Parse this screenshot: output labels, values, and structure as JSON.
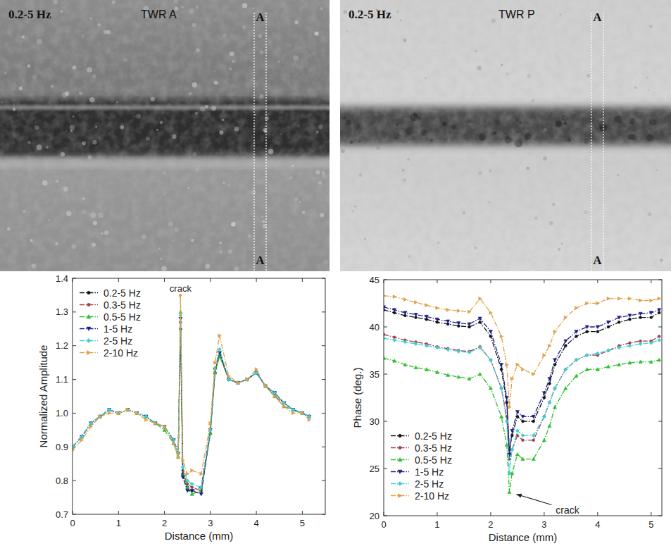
{
  "images": [
    {
      "frequency": "0.2-5 Hz",
      "title": "TWR A",
      "section_labels": [
        "A",
        "A"
      ]
    },
    {
      "frequency": "0.2-5 Hz",
      "title": "TWR P",
      "section_labels": [
        "A",
        "A"
      ]
    }
  ],
  "chart_data": [
    {
      "type": "line",
      "x_label": "Distance (mm)",
      "y_label": "Normalized Amplitude",
      "x": [
        0,
        0.2,
        0.4,
        0.6,
        0.8,
        1.0,
        1.2,
        1.4,
        1.6,
        1.8,
        2.0,
        2.2,
        2.3,
        2.35,
        2.4,
        2.5,
        2.6,
        2.8,
        3.0,
        3.1,
        3.2,
        3.4,
        3.6,
        3.8,
        4.0,
        4.2,
        4.4,
        4.6,
        4.8,
        5.0,
        5.15
      ],
      "series": [
        {
          "name": "0.2-5 Hz",
          "color": "#111111",
          "marker": "circle",
          "values": [
            0.9,
            0.93,
            0.97,
            0.99,
            1.01,
            1.0,
            1.01,
            1.0,
            0.99,
            0.97,
            0.96,
            0.92,
            0.88,
            1.25,
            0.82,
            0.78,
            0.77,
            0.78,
            0.95,
            1.12,
            1.18,
            1.1,
            1.09,
            1.1,
            1.12,
            1.08,
            1.06,
            1.03,
            1.01,
            1.0,
            0.99
          ]
        },
        {
          "name": "0.3-5 Hz",
          "color": "#a0404a",
          "marker": "circle",
          "values": [
            0.9,
            0.93,
            0.97,
            0.99,
            1.01,
            1.0,
            1.01,
            1.0,
            0.99,
            0.97,
            0.96,
            0.92,
            0.88,
            1.27,
            0.83,
            0.79,
            0.78,
            0.77,
            0.94,
            1.12,
            1.17,
            1.1,
            1.09,
            1.1,
            1.12,
            1.08,
            1.05,
            1.03,
            1.01,
            1.0,
            0.99
          ]
        },
        {
          "name": "0.5-5 Hz",
          "color": "#2fbf2f",
          "marker": "triangle-up",
          "values": [
            0.9,
            0.93,
            0.97,
            0.99,
            1.01,
            1.0,
            1.01,
            1.0,
            0.99,
            0.97,
            0.95,
            0.91,
            0.87,
            1.3,
            0.82,
            0.78,
            0.76,
            0.77,
            0.94,
            1.12,
            1.17,
            1.1,
            1.09,
            1.1,
            1.12,
            1.08,
            1.05,
            1.02,
            1.01,
            1.0,
            0.99
          ]
        },
        {
          "name": "1-5 Hz",
          "color": "#1c1c8c",
          "marker": "triangle-down",
          "values": [
            0.9,
            0.93,
            0.97,
            0.99,
            1.01,
            1.0,
            1.01,
            1.0,
            0.99,
            0.97,
            0.96,
            0.92,
            0.88,
            1.28,
            0.81,
            0.77,
            0.77,
            0.76,
            0.95,
            1.13,
            1.18,
            1.1,
            1.09,
            1.1,
            1.12,
            1.08,
            1.06,
            1.03,
            1.01,
            1.0,
            0.99
          ]
        },
        {
          "name": "2-5 Hz",
          "color": "#3ecfd6",
          "marker": "diamond",
          "values": [
            0.9,
            0.93,
            0.97,
            0.99,
            1.01,
            1.0,
            1.01,
            1.0,
            0.99,
            0.97,
            0.96,
            0.92,
            0.88,
            1.29,
            0.84,
            0.8,
            0.79,
            0.78,
            0.95,
            1.13,
            1.19,
            1.1,
            1.09,
            1.1,
            1.12,
            1.08,
            1.06,
            1.03,
            1.01,
            1.0,
            0.99
          ]
        },
        {
          "name": "2-10 Hz",
          "color": "#e0a048",
          "marker": "triangle-right",
          "values": [
            0.89,
            0.92,
            0.96,
            0.99,
            1.0,
            1.0,
            1.01,
            1.0,
            0.98,
            0.97,
            0.96,
            0.91,
            0.87,
            1.35,
            0.86,
            0.82,
            0.83,
            0.82,
            0.97,
            1.15,
            1.23,
            1.11,
            1.09,
            1.1,
            1.13,
            1.08,
            1.05,
            1.02,
            1.0,
            1.0,
            0.98
          ]
        }
      ],
      "xlim": [
        0,
        5.5
      ],
      "xticks": [
        0,
        1,
        2,
        3,
        4,
        5
      ],
      "ylim": [
        0.7,
        1.4
      ],
      "yticks": [
        0.7,
        0.8,
        0.9,
        {
          "value": 1,
          "label": "1.0"
        },
        1.1,
        1.2,
        1.3,
        1.4
      ],
      "legend": "upper left",
      "line_style": "dashdot",
      "grid": false,
      "annotations": [
        {
          "text": "crack",
          "x": 2.35,
          "y": 1.36
        }
      ]
    },
    {
      "type": "line",
      "x_label": "Distance (mm)",
      "y_label": "Phase (deg.)",
      "x": [
        0,
        0.2,
        0.4,
        0.6,
        0.8,
        1.0,
        1.2,
        1.4,
        1.6,
        1.8,
        2.0,
        2.2,
        2.3,
        2.35,
        2.4,
        2.5,
        2.6,
        2.8,
        3.0,
        3.1,
        3.2,
        3.4,
        3.6,
        3.8,
        4.0,
        4.2,
        4.4,
        4.6,
        4.8,
        5.0,
        5.15
      ],
      "series": [
        {
          "name": "0.2-5 Hz",
          "color": "#111111",
          "marker": "circle",
          "values": [
            41.8,
            41.5,
            41.2,
            41.0,
            40.8,
            40.5,
            40.3,
            40.1,
            40.0,
            40.5,
            39.0,
            35.5,
            32.0,
            27.0,
            28.5,
            30.5,
            30.0,
            30.0,
            32.5,
            34.0,
            36.0,
            38.0,
            39.0,
            39.5,
            39.5,
            40.0,
            40.5,
            40.8,
            41.0,
            41.0,
            41.5
          ]
        },
        {
          "name": "0.3-5 Hz",
          "color": "#a0404a",
          "marker": "circle",
          "values": [
            39.2,
            38.9,
            38.6,
            38.4,
            38.2,
            37.9,
            37.7,
            37.5,
            37.4,
            37.9,
            36.5,
            33.5,
            30.5,
            26.0,
            27.0,
            28.5,
            28.0,
            28.0,
            30.5,
            32.0,
            33.5,
            35.5,
            36.5,
            37.0,
            37.0,
            37.5,
            38.0,
            38.3,
            38.5,
            38.5,
            39.0
          ]
        },
        {
          "name": "0.5-5 Hz",
          "color": "#2fbf2f",
          "marker": "triangle-up",
          "values": [
            36.7,
            36.4,
            36.0,
            35.7,
            35.5,
            35.2,
            34.9,
            34.7,
            34.5,
            35.0,
            33.5,
            30.5,
            27.5,
            22.5,
            24.5,
            26.5,
            26.0,
            26.0,
            28.0,
            29.5,
            31.5,
            33.5,
            34.8,
            35.5,
            35.5,
            35.8,
            36.0,
            36.2,
            36.3,
            36.3,
            36.5
          ]
        },
        {
          "name": "1-5 Hz",
          "color": "#1c1c8c",
          "marker": "triangle-down",
          "values": [
            42.1,
            41.8,
            41.5,
            41.3,
            41.1,
            40.8,
            40.6,
            40.4,
            40.3,
            40.9,
            39.5,
            36.0,
            32.5,
            26.5,
            29.0,
            31.0,
            30.5,
            30.5,
            33.0,
            34.5,
            36.5,
            38.5,
            39.5,
            40.0,
            40.0,
            40.5,
            41.0,
            41.2,
            41.4,
            41.5,
            41.8
          ]
        },
        {
          "name": "2-5 Hz",
          "color": "#3ecfd6",
          "marker": "diamond",
          "values": [
            38.8,
            38.6,
            38.4,
            38.2,
            38.0,
            37.8,
            37.6,
            37.4,
            37.3,
            37.8,
            36.5,
            33.5,
            30.0,
            24.5,
            27.0,
            29.0,
            28.5,
            28.5,
            30.5,
            32.0,
            33.5,
            35.5,
            36.5,
            37.0,
            37.2,
            37.5,
            37.8,
            38.0,
            38.2,
            38.3,
            38.6
          ]
        },
        {
          "name": "2-10 Hz",
          "color": "#e0a048",
          "marker": "triangle-right",
          "values": [
            43.3,
            43.2,
            42.9,
            42.6,
            42.3,
            42.0,
            41.8,
            41.7,
            41.6,
            43.0,
            41.5,
            39.0,
            36.0,
            31.5,
            34.5,
            36.0,
            35.5,
            35.0,
            37.0,
            38.0,
            39.5,
            41.0,
            42.0,
            42.5,
            42.5,
            43.0,
            43.0,
            43.0,
            42.8,
            42.8,
            43.0
          ]
        }
      ],
      "xlim": [
        0,
        5.2
      ],
      "xticks": [
        0,
        1,
        2,
        3,
        4,
        5
      ],
      "ylim": [
        20,
        45
      ],
      "yticks": [
        20,
        25,
        30,
        35,
        40,
        45
      ],
      "legend": "lower left",
      "line_style": "dashdot",
      "grid": false,
      "annotations": [
        {
          "text": "crack",
          "x": 2.4,
          "y": 22.5
        }
      ]
    }
  ]
}
